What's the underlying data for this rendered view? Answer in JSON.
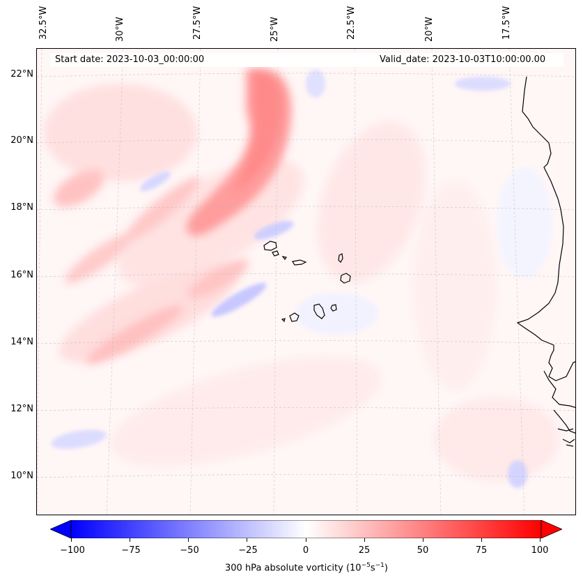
{
  "header": {
    "start_date": "Start date: 2023-10-03_00:00:00",
    "valid_date": "Valid_date: 2023-10-03T10:00:00.00"
  },
  "axes": {
    "lon_labels": [
      "32.5°W",
      "30°W",
      "27.5°W",
      "25°W",
      "22.5°W",
      "20°W",
      "17.5°W"
    ],
    "lat_labels": [
      "22°N",
      "20°N",
      "18°N",
      "16°N",
      "14°N",
      "12°N",
      "10°N"
    ]
  },
  "colorbar": {
    "ticks": [
      "−100",
      "−75",
      "−50",
      "−25",
      "0",
      "25",
      "50",
      "75",
      "100"
    ],
    "label": "300 hPa absolute vorticity (10",
    "label_exp1": "−5",
    "label_mid": "s",
    "label_exp2": "−1",
    "label_end": ")",
    "min": -100,
    "max": 100,
    "neg_color": "#0000ff",
    "pos_color": "#ff0000"
  },
  "map": {
    "region": "Eastern tropical Atlantic off West Africa with Cabo Verde islands",
    "positive_color": "#ff8080",
    "negative_color": "#8080ff"
  }
}
